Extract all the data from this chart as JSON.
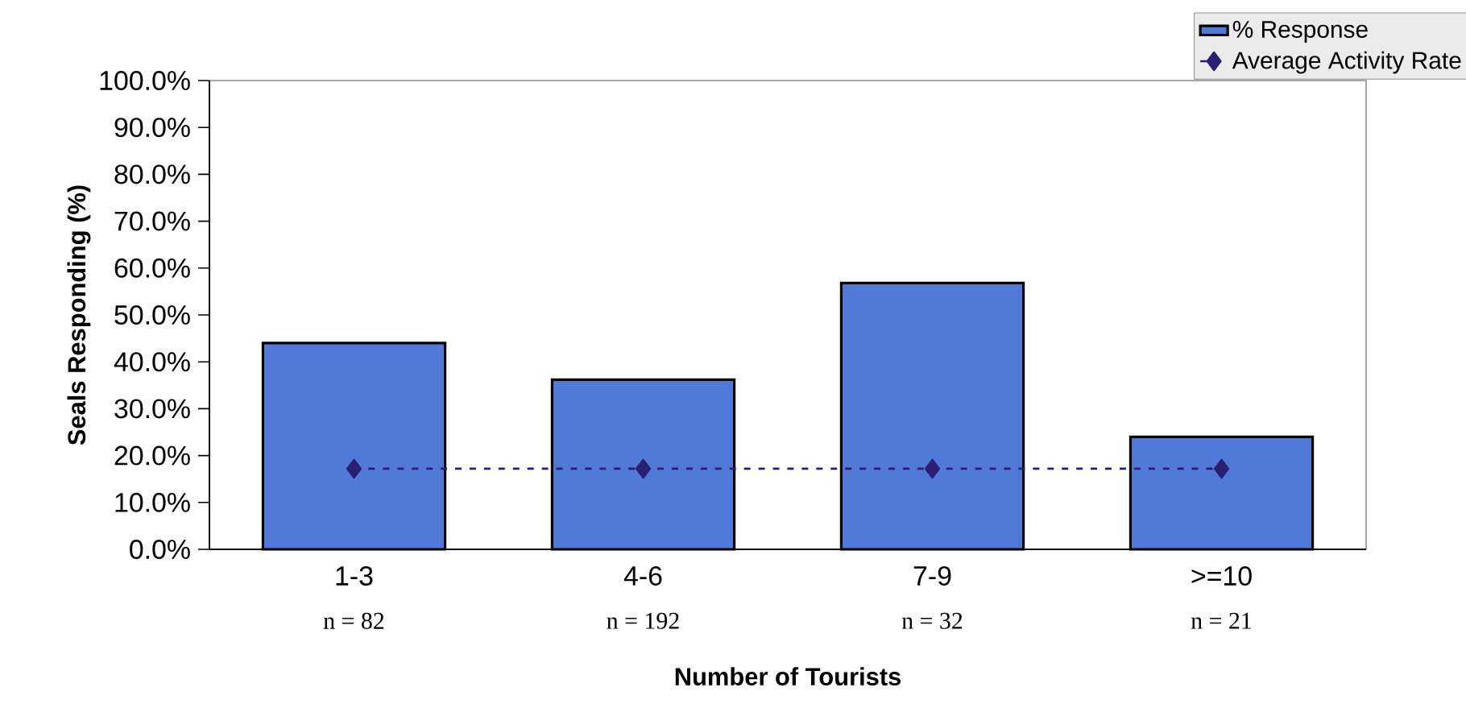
{
  "chart_data": {
    "type": "bar",
    "xlabel": "Number of Tourists",
    "ylabel": "Seals Responding (%)",
    "categories": [
      "1-3",
      "4-6",
      "7-9",
      ">=10"
    ],
    "series": [
      {
        "name": "% Response",
        "color": "#5079d8",
        "values": [
          44.0,
          36.2,
          56.8,
          24.0
        ]
      },
      {
        "name": "Average Activity Rate",
        "type": "line",
        "color": "#2b1f72",
        "values": [
          17.2,
          17.2,
          17.2,
          17.2
        ],
        "marker": "diamond",
        "line_style": "dashed"
      }
    ],
    "ylim": [
      0,
      100
    ],
    "yticks": [
      {
        "value": 0,
        "label": "0.0%"
      },
      {
        "value": 10,
        "label": "10.0%"
      },
      {
        "value": 20,
        "label": "20.0%"
      },
      {
        "value": 30,
        "label": "30.0%"
      },
      {
        "value": 40,
        "label": "40.0%"
      },
      {
        "value": 50,
        "label": "50.0%"
      },
      {
        "value": 60,
        "label": "60.0%"
      },
      {
        "value": 70,
        "label": "70.0%"
      },
      {
        "value": 80,
        "label": "80.0%"
      },
      {
        "value": 90,
        "label": "90.0%"
      },
      {
        "value": 100,
        "label": "100.0%"
      }
    ],
    "legend": "top right",
    "annotations": [
      "n = 82",
      "n = 192",
      "n = 32",
      "n = 21"
    ]
  }
}
